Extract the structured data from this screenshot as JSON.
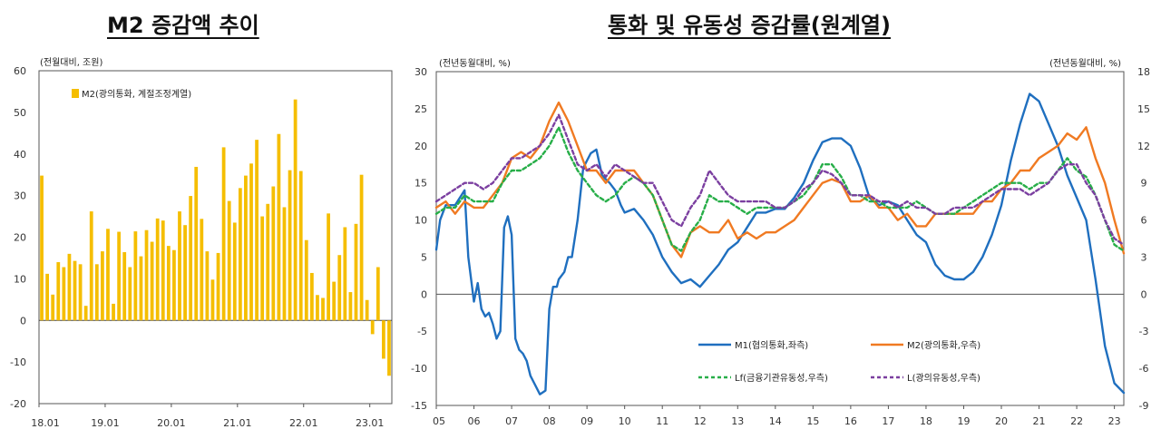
{
  "titles": {
    "left": "M2 증감액 추이",
    "right": "통화 및 유동성 증감률(원계열)"
  },
  "chart_data": [
    {
      "type": "bar",
      "unit_label": "(전월대비, 조원)",
      "legend": "M2(광의통화, 계절조정계열)",
      "color": "#F5BE00",
      "ylim": [
        -20,
        60
      ],
      "yticks": [
        -20,
        -10,
        0,
        10,
        20,
        30,
        40,
        50,
        60
      ],
      "xtick_labels": [
        "18.01",
        "19.01",
        "20.01",
        "21.01",
        "22.01",
        "23.01"
      ],
      "x_start": "2018-01",
      "values": [
        34.8,
        11.2,
        6.2,
        14.0,
        12.8,
        16.0,
        14.3,
        13.5,
        3.5,
        26.2,
        13.5,
        16.6,
        22.0,
        4.0,
        21.3,
        16.4,
        12.8,
        21.4,
        15.4,
        21.7,
        18.9,
        24.5,
        24.0,
        17.9,
        16.9,
        26.2,
        22.9,
        29.9,
        36.9,
        24.4,
        16.6,
        9.8,
        16.2,
        41.6,
        28.7,
        23.5,
        31.8,
        34.8,
        37.7,
        43.4,
        25.0,
        28.0,
        32.2,
        44.8,
        27.2,
        36.1,
        53.1,
        35.9,
        19.3,
        11.4,
        6.1,
        5.4,
        25.7,
        9.3,
        15.7,
        22.4,
        6.8,
        23.2,
        35.0,
        4.9,
        -3.3,
        12.8,
        -9.2,
        -13.3
      ]
    },
    {
      "type": "line",
      "unit_left": "(전년동월대비, %)",
      "unit_right": "(전년동월대비, %)",
      "xtick_labels": [
        "05",
        "06",
        "07",
        "08",
        "09",
        "10",
        "11",
        "12",
        "13",
        "14",
        "15",
        "16",
        "17",
        "18",
        "19",
        "20",
        "21",
        "22",
        "23"
      ],
      "ylim_left": [
        -15,
        30
      ],
      "yticks_left": [
        -15,
        -10,
        -5,
        0,
        5,
        10,
        15,
        20,
        25,
        30
      ],
      "ylim_right": [
        -9,
        18
      ],
      "yticks_right": [
        -9,
        -6,
        -3,
        0,
        3,
        6,
        9,
        12,
        15,
        18
      ],
      "x_range": [
        2005.0,
        2023.25
      ],
      "series": [
        {
          "name": "M1(협의통화,좌측)",
          "axis": "left",
          "color": "#1F6FBF",
          "dash": false,
          "x": [
            2005.0,
            2005.1,
            2005.25,
            2005.5,
            2005.75,
            2005.85,
            2006.0,
            2006.1,
            2006.2,
            2006.3,
            2006.4,
            2006.5,
            2006.6,
            2006.7,
            2006.8,
            2006.9,
            2007.0,
            2007.1,
            2007.2,
            2007.3,
            2007.4,
            2007.5,
            2007.6,
            2007.75,
            2007.9,
            2008.0,
            2008.1,
            2008.2,
            2008.25,
            2008.4,
            2008.5,
            2008.6,
            2008.75,
            2008.9,
            2009.0,
            2009.1,
            2009.25,
            2009.4,
            2009.6,
            2009.75,
            2009.9,
            2010.0,
            2010.25,
            2010.5,
            2010.75,
            2011.0,
            2011.25,
            2011.5,
            2011.75,
            2012.0,
            2012.25,
            2012.5,
            2012.75,
            2013.0,
            2013.25,
            2013.5,
            2013.75,
            2014.0,
            2014.25,
            2014.5,
            2014.75,
            2015.0,
            2015.25,
            2015.5,
            2015.75,
            2016.0,
            2016.25,
            2016.5,
            2016.75,
            2017.0,
            2017.25,
            2017.5,
            2017.75,
            2018.0,
            2018.25,
            2018.5,
            2018.75,
            2019.0,
            2019.25,
            2019.5,
            2019.75,
            2020.0,
            2020.25,
            2020.5,
            2020.75,
            2021.0,
            2021.25,
            2021.5,
            2021.75,
            2022.0,
            2022.25,
            2022.5,
            2022.75,
            2023.0,
            2023.25
          ],
          "values": [
            6,
            10,
            12,
            12,
            14,
            5,
            -1,
            1.5,
            -2,
            -3,
            -2.5,
            -4,
            -6,
            -5,
            9,
            10.5,
            8,
            -6,
            -7.5,
            -8,
            -9,
            -11,
            -12,
            -13.5,
            -13,
            -2,
            1,
            1,
            2,
            3,
            5,
            5,
            10,
            17,
            18,
            19,
            19.5,
            16,
            15,
            14,
            12,
            11,
            11.5,
            10,
            8,
            5,
            3,
            1.5,
            2,
            1,
            2.5,
            4,
            6,
            7,
            9,
            11,
            11,
            11.5,
            11.5,
            13,
            15,
            18,
            20.5,
            21,
            21,
            20,
            17,
            13,
            12,
            12.5,
            12,
            10,
            8,
            7,
            4,
            2.5,
            2,
            2,
            3,
            5,
            8,
            12,
            18,
            23,
            27,
            26,
            23,
            20,
            16,
            13,
            10,
            2,
            -7,
            -12,
            -13.3
          ]
        },
        {
          "name": "M2(광의통화,우측)",
          "axis": "right",
          "color": "#F07A22",
          "dash": false,
          "x": [
            2005.0,
            2005.25,
            2005.5,
            2005.75,
            2006.0,
            2006.25,
            2006.5,
            2006.75,
            2007.0,
            2007.25,
            2007.5,
            2007.75,
            2008.0,
            2008.25,
            2008.5,
            2008.75,
            2009.0,
            2009.25,
            2009.5,
            2009.75,
            2010.0,
            2010.25,
            2010.5,
            2010.75,
            2011.0,
            2011.25,
            2011.5,
            2011.75,
            2012.0,
            2012.25,
            2012.5,
            2012.75,
            2013.0,
            2013.25,
            2013.5,
            2013.75,
            2014.0,
            2014.25,
            2014.5,
            2014.75,
            2015.0,
            2015.25,
            2015.5,
            2015.75,
            2016.0,
            2016.25,
            2016.5,
            2016.75,
            2017.0,
            2017.25,
            2017.5,
            2017.75,
            2018.0,
            2018.25,
            2018.5,
            2018.75,
            2019.0,
            2019.25,
            2019.5,
            2019.75,
            2020.0,
            2020.25,
            2020.5,
            2020.75,
            2021.0,
            2021.25,
            2021.5,
            2021.75,
            2022.0,
            2022.25,
            2022.5,
            2022.75,
            2023.0,
            2023.25
          ],
          "values": [
            7,
            7.5,
            6.5,
            7.5,
            7,
            7,
            8,
            9,
            11,
            11.5,
            11,
            12,
            14,
            15.5,
            14,
            12,
            10,
            10,
            9,
            10,
            10,
            10,
            9,
            8,
            6,
            4,
            3,
            5,
            5.5,
            5,
            5,
            6,
            4.5,
            5,
            4.5,
            5,
            5,
            5.5,
            6,
            7,
            8,
            9,
            9.3,
            9,
            7.5,
            7.5,
            8,
            7,
            7,
            6,
            6.5,
            5.5,
            5.5,
            6.5,
            6.5,
            6.5,
            6.5,
            6.5,
            7.5,
            7.5,
            8.5,
            9,
            10,
            10,
            11,
            11.5,
            12,
            13,
            12.5,
            13.5,
            11,
            9,
            6,
            3.3
          ]
        },
        {
          "name": "Lf(금융기관유동성,우측)",
          "axis": "right",
          "color": "#27AE48",
          "dash": true,
          "x": [
            2005.0,
            2005.25,
            2005.5,
            2005.75,
            2006.0,
            2006.25,
            2006.5,
            2006.75,
            2007.0,
            2007.25,
            2007.5,
            2007.75,
            2008.0,
            2008.25,
            2008.5,
            2008.75,
            2009.0,
            2009.25,
            2009.5,
            2009.75,
            2010.0,
            2010.25,
            2010.5,
            2010.75,
            2011.0,
            2011.25,
            2011.5,
            2011.75,
            2012.0,
            2012.25,
            2012.5,
            2012.75,
            2013.0,
            2013.25,
            2013.5,
            2013.75,
            2014.0,
            2014.25,
            2014.5,
            2014.75,
            2015.0,
            2015.25,
            2015.5,
            2015.75,
            2016.0,
            2016.25,
            2016.5,
            2016.75,
            2017.0,
            2017.25,
            2017.5,
            2017.75,
            2018.0,
            2018.25,
            2018.5,
            2018.75,
            2019.0,
            2019.25,
            2019.5,
            2019.75,
            2020.0,
            2020.25,
            2020.5,
            2020.75,
            2021.0,
            2021.25,
            2021.5,
            2021.75,
            2022.0,
            2022.25,
            2022.5,
            2022.75,
            2023.0,
            2023.25
          ],
          "values": [
            6.5,
            7,
            7,
            8,
            7.5,
            7.5,
            7.5,
            9,
            10,
            10,
            10.5,
            11,
            12,
            13.5,
            11.5,
            10,
            9,
            8,
            7.5,
            8,
            9,
            9.5,
            9,
            8,
            6,
            4,
            3.5,
            5,
            6,
            8,
            7.5,
            7.5,
            7,
            6.5,
            7,
            7,
            7,
            7,
            7.5,
            8,
            9,
            10.5,
            10.5,
            9.5,
            8,
            8,
            7.5,
            7.5,
            7,
            7,
            7,
            7.5,
            7,
            6.5,
            6.5,
            6.5,
            7,
            7.5,
            8,
            8.5,
            9,
            9,
            9,
            8.5,
            9,
            9,
            10,
            11,
            10,
            9.5,
            8,
            6,
            4,
            3.5
          ]
        },
        {
          "name": "L(광의유동성,우측)",
          "axis": "right",
          "color": "#7B3FA0",
          "dash": true,
          "x": [
            2005.0,
            2005.25,
            2005.5,
            2005.75,
            2006.0,
            2006.25,
            2006.5,
            2006.75,
            2007.0,
            2007.25,
            2007.5,
            2007.75,
            2008.0,
            2008.25,
            2008.5,
            2008.75,
            2009.0,
            2009.25,
            2009.5,
            2009.75,
            2010.0,
            2010.25,
            2010.5,
            2010.75,
            2011.0,
            2011.25,
            2011.5,
            2011.75,
            2012.0,
            2012.25,
            2012.5,
            2012.75,
            2013.0,
            2013.25,
            2013.5,
            2013.75,
            2014.0,
            2014.25,
            2014.5,
            2014.75,
            2015.0,
            2015.25,
            2015.5,
            2015.75,
            2016.0,
            2016.25,
            2016.5,
            2016.75,
            2017.0,
            2017.25,
            2017.5,
            2017.75,
            2018.0,
            2018.25,
            2018.5,
            2018.75,
            2019.0,
            2019.25,
            2019.5,
            2019.75,
            2020.0,
            2020.25,
            2020.5,
            2020.75,
            2021.0,
            2021.25,
            2021.5,
            2021.75,
            2022.0,
            2022.25,
            2022.5,
            2022.75,
            2023.0,
            2023.25
          ],
          "values": [
            7.5,
            8,
            8.5,
            9,
            9,
            8.5,
            9,
            10,
            11,
            11,
            11.5,
            12,
            13,
            14.5,
            12.5,
            10.5,
            10,
            10.5,
            9.5,
            10.5,
            10,
            9.5,
            9,
            9,
            7.5,
            6,
            5.5,
            7,
            8,
            10,
            9,
            8,
            7.5,
            7.5,
            7.5,
            7.5,
            7,
            7,
            7.5,
            8.5,
            9,
            10,
            9.7,
            9,
            8,
            8,
            8,
            7.5,
            7.5,
            7,
            7.5,
            7,
            7,
            6.5,
            6.5,
            7,
            7,
            7,
            7.5,
            8,
            8.5,
            8.5,
            8.5,
            8,
            8.5,
            9,
            10,
            10.5,
            10.5,
            9,
            8,
            6,
            4.5,
            4
          ]
        }
      ]
    }
  ]
}
